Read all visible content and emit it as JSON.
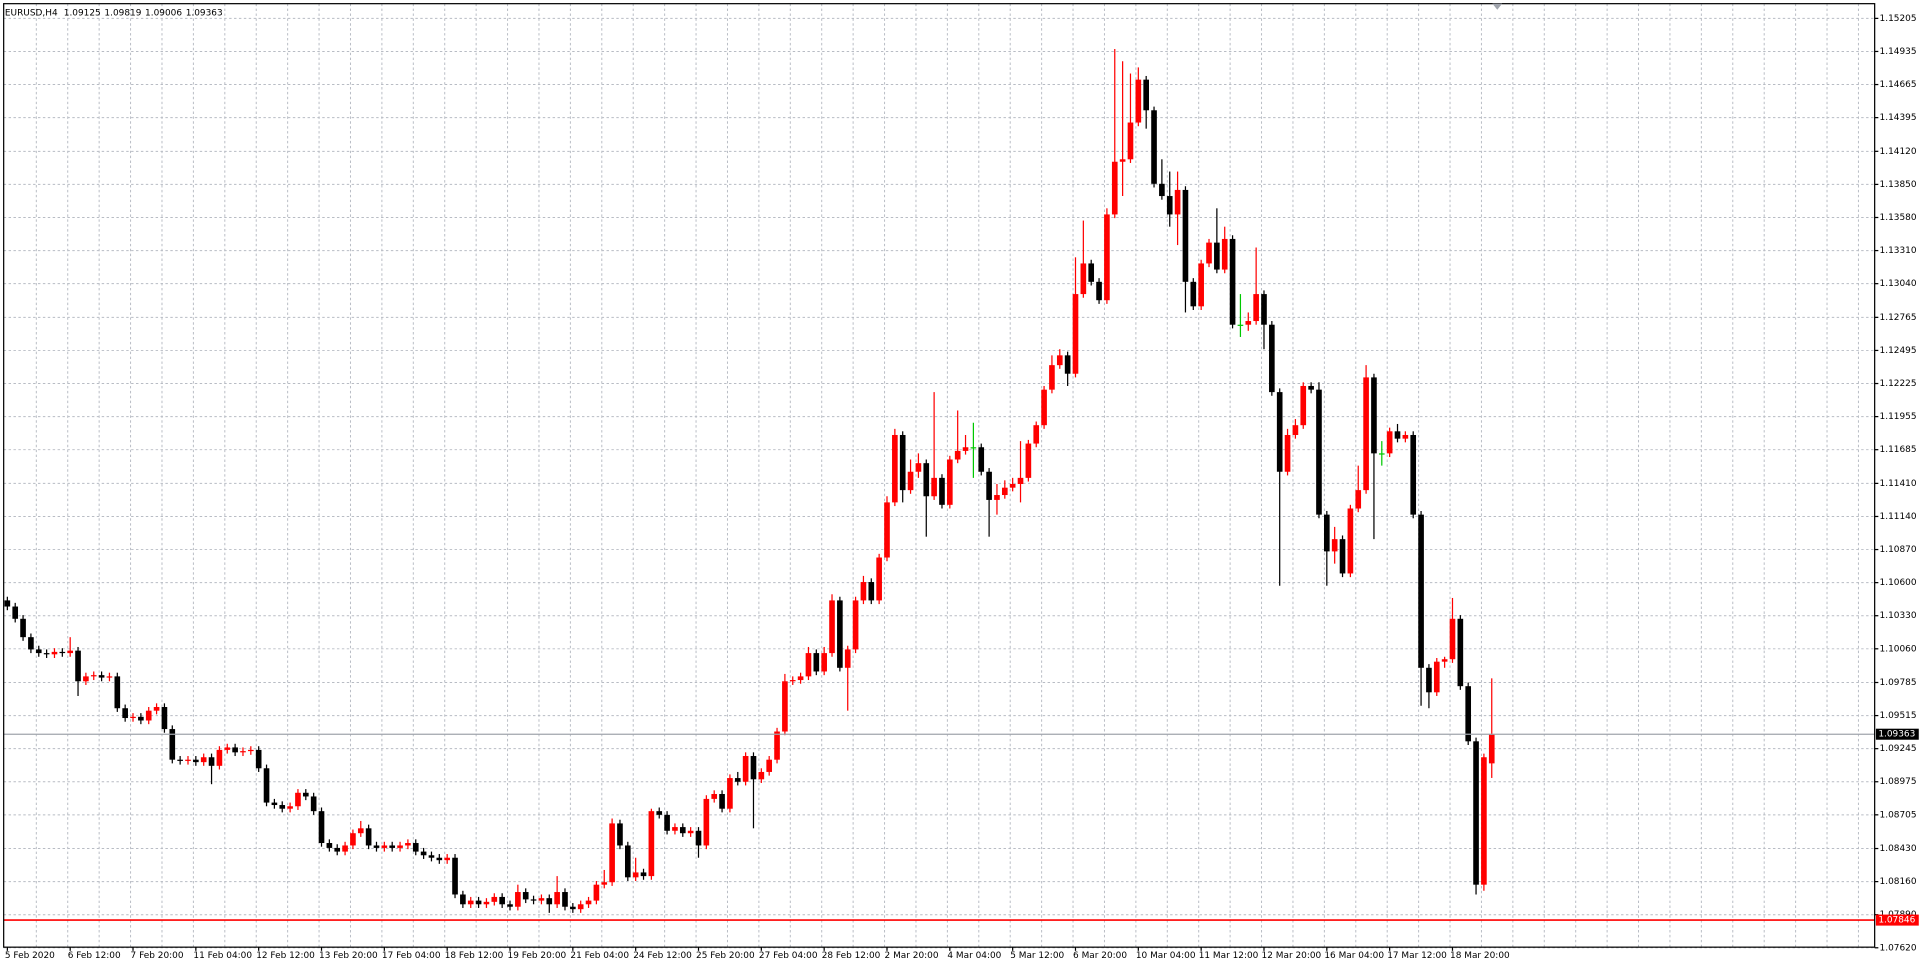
{
  "chart_data": {
    "type": "candlestick",
    "title": "EURUSD,H4",
    "bull_color": "#ff0000",
    "bear_color": "#000000",
    "doji_color": "#00c800",
    "grid": true,
    "ylim": [
      1.07625,
      1.15325
    ],
    "yticks": [
      1.15205,
      1.14935,
      1.14665,
      1.14395,
      {
        "value": 1.1412,
        "label": "1.14120"
      },
      {
        "value": 1.1385,
        "label": "1.13850"
      },
      {
        "value": 1.1358,
        "label": "1.13580"
      },
      {
        "value": 1.1331,
        "label": "1.13310"
      },
      {
        "value": 1.1304,
        "label": "1.13040"
      },
      1.12765,
      1.12495,
      1.12225,
      1.11955,
      1.11685,
      {
        "value": 1.1141,
        "label": "1.11410"
      },
      {
        "value": 1.1114,
        "label": "1.11140"
      },
      {
        "value": 1.1087,
        "label": "1.10870"
      },
      {
        "value": 1.106,
        "label": "1.10600"
      },
      {
        "value": 1.1033,
        "label": "1.10330"
      },
      {
        "value": 1.1006,
        "label": "1.10060"
      },
      1.09785,
      1.09515,
      1.09245,
      1.08975,
      1.08705,
      {
        "value": 1.0843,
        "label": "1.08430"
      },
      {
        "value": 1.0816,
        "label": "1.08160"
      },
      {
        "value": 1.0789,
        "label": "1.07890"
      },
      {
        "value": 1.0762,
        "label": "1.07620"
      }
    ],
    "hline": {
      "value": 1.07846,
      "color": "#ff0000"
    },
    "categories": [
      "5 Feb 2020",
      null,
      null,
      null,
      null,
      null,
      null,
      null,
      "6 Feb 12:00",
      null,
      null,
      null,
      null,
      null,
      null,
      null,
      "7 Feb 20:00",
      null,
      null,
      null,
      null,
      null,
      null,
      null,
      "11 Feb 04:00",
      null,
      null,
      null,
      null,
      null,
      null,
      null,
      "12 Feb 12:00",
      null,
      null,
      null,
      null,
      null,
      null,
      null,
      "13 Feb 20:00",
      null,
      null,
      null,
      null,
      null,
      null,
      null,
      "17 Feb 04:00",
      null,
      null,
      null,
      null,
      null,
      null,
      null,
      "18 Feb 12:00",
      null,
      null,
      null,
      null,
      null,
      null,
      null,
      "19 Feb 20:00",
      null,
      null,
      null,
      null,
      null,
      null,
      null,
      "21 Feb 04:00",
      null,
      null,
      null,
      null,
      null,
      null,
      null,
      "24 Feb 12:00",
      null,
      null,
      null,
      null,
      null,
      null,
      null,
      "25 Feb 20:00",
      null,
      null,
      null,
      null,
      null,
      null,
      null,
      "27 Feb 04:00",
      null,
      null,
      null,
      null,
      null,
      null,
      null,
      "28 Feb 12:00",
      null,
      null,
      null,
      null,
      null,
      null,
      null,
      "2 Mar 20:00",
      null,
      null,
      null,
      null,
      null,
      null,
      null,
      "4 Mar 04:00",
      null,
      null,
      null,
      null,
      null,
      null,
      null,
      "5 Mar 12:00",
      null,
      null,
      null,
      null,
      null,
      null,
      null,
      "6 Mar 20:00",
      null,
      null,
      null,
      null,
      null,
      null,
      null,
      "10 Mar 04:00",
      null,
      null,
      null,
      null,
      null,
      null,
      null,
      "11 Mar 12:00",
      null,
      null,
      null,
      null,
      null,
      null,
      null,
      "12 Mar 20:00",
      null,
      null,
      null,
      null,
      null,
      null,
      null,
      "16 Mar 04:00",
      null,
      null,
      null,
      null,
      null,
      null,
      null,
      "17 Mar 12:00",
      null,
      null,
      null,
      null,
      null,
      null,
      null,
      "18 Mar 20:00",
      null,
      null,
      null,
      null,
      null
    ],
    "open": [
      1.10455,
      1.10405,
      1.10305,
      1.10155,
      1.10055,
      1.10025,
      1.10015,
      1.10035,
      1.10025,
      1.10045,
      1.09795,
      1.09835,
      1.09845,
      1.09825,
      1.09835,
      1.09575,
      1.09495,
      1.09505,
      1.09475,
      1.09555,
      1.09585,
      1.09405,
      1.09155,
      1.09145,
      1.09155,
      1.09135,
      1.09175,
      1.09105,
      1.09235,
      1.09255,
      1.09215,
      1.09225,
      1.09235,
      1.09085,
      1.08805,
      1.08785,
      1.08755,
      1.08775,
      1.08885,
      1.08855,
      1.08735,
      1.08475,
      1.08435,
      1.08405,
      1.08455,
      1.08555,
      1.08595,
      1.08455,
      1.08435,
      1.08455,
      1.08435,
      1.08455,
      1.08475,
      1.08405,
      1.08375,
      1.08355,
      1.08335,
      1.08355,
      1.08055,
      1.07975,
      1.08005,
      1.07975,
      1.07995,
      1.08035,
      1.07975,
      1.07955,
      1.08075,
      1.08015,
      1.08005,
      1.08025,
      1.07975,
      1.08075,
      1.07955,
      1.07935,
      1.07975,
      1.08005,
      1.08135,
      1.08155,
      1.08635,
      1.08455,
      1.08195,
      1.08235,
      1.08205,
      1.08735,
      1.08705,
      1.08575,
      1.08605,
      1.08555,
      1.08575,
      1.08455,
      1.08835,
      1.08875,
      1.08755,
      1.09005,
      1.08975,
      1.09185,
      1.08995,
      1.09055,
      1.09155,
      1.09385,
      1.09795,
      1.09805,
      1.09835,
      1.10025,
      1.09875,
      1.10025,
      1.10455,
      1.09905,
      1.10055,
      1.10455,
      1.10605,
      1.10455,
      1.10805,
      1.11255,
      1.11805,
      1.11355,
      1.11505,
      1.11575,
      1.11305,
      1.11455,
      1.11235,
      1.11605,
      1.11675,
      1.11705,
      1.11705,
      1.11505,
      1.11275,
      1.11315,
      1.11375,
      1.11405,
      1.11455,
      1.11735,
      1.11885,
      1.12175,
      1.12375,
      1.12455,
      1.12305,
      1.12955,
      1.13205,
      1.13055,
      1.12905,
      1.13605,
      1.14035,
      1.14055,
      1.14355,
      1.14705,
      1.14455,
      1.13855,
      1.13755,
      1.13605,
      1.13805,
      1.13055,
      1.12855,
      1.13205,
      1.13375,
      1.13155,
      1.13405,
      1.12705,
      1.12705,
      1.12735,
      1.12955,
      1.12705,
      1.12155,
      1.11505,
      1.11805,
      1.11885,
      1.12205,
      1.12175,
      1.11155,
      1.10855,
      1.10955,
      1.10675,
      1.11205,
      1.11355,
      1.12275,
      1.11655,
      1.11655,
      1.11835,
      1.11775,
      1.11805,
      1.11155,
      1.09905,
      1.09705,
      1.09955,
      1.09975,
      1.10305,
      1.09755,
      1.09305,
      1.08135,
      1.09125
    ],
    "high": [
      1.10485,
      1.10435,
      1.10335,
      1.10185,
      1.10085,
      1.10055,
      1.10065,
      1.10065,
      1.10155,
      1.10075,
      1.09865,
      1.09875,
      1.09875,
      1.09865,
      1.09865,
      1.09605,
      1.09535,
      1.09535,
      1.09585,
      1.09615,
      1.09615,
      1.09435,
      1.09185,
      1.09185,
      1.09185,
      1.09205,
      1.09205,
      1.09265,
      1.09285,
      1.09285,
      1.09255,
      1.09265,
      1.09265,
      1.09115,
      1.08835,
      1.08815,
      1.08805,
      1.08915,
      1.08915,
      1.08885,
      1.08765,
      1.08505,
      1.08465,
      1.08485,
      1.08585,
      1.08655,
      1.08625,
      1.08485,
      1.08485,
      1.08485,
      1.08485,
      1.08505,
      1.08505,
      1.08435,
      1.08405,
      1.08385,
      1.08385,
      1.08385,
      1.08085,
      1.08035,
      1.08035,
      1.08025,
      1.08065,
      1.08065,
      1.08005,
      1.08135,
      1.08105,
      1.08045,
      1.08055,
      1.08055,
      1.08205,
      1.08105,
      1.07985,
      1.08005,
      1.08035,
      1.08165,
      1.08255,
      1.08675,
      1.08665,
      1.08485,
      1.08355,
      1.08265,
      1.08755,
      1.08765,
      1.08735,
      1.08635,
      1.08635,
      1.08605,
      1.08605,
      1.08865,
      1.08905,
      1.08905,
      1.09035,
      1.09055,
      1.09215,
      1.09215,
      1.09085,
      1.09185,
      1.09415,
      1.09855,
      1.09835,
      1.09865,
      1.10075,
      1.10055,
      1.10075,
      1.10505,
      1.10485,
      1.10085,
      1.10485,
      1.10655,
      1.10635,
      1.10835,
      1.11305,
      1.11855,
      1.11835,
      1.11605,
      1.11655,
      1.11605,
      1.12155,
      1.11485,
      1.11635,
      1.12005,
      1.11805,
      1.11905,
      1.11735,
      1.11535,
      1.11405,
      1.11435,
      1.11455,
      1.11755,
      1.11765,
      1.11915,
      1.12205,
      1.12455,
      1.12505,
      1.12485,
      1.13255,
      1.13555,
      1.13235,
      1.13085,
      1.13655,
      1.14955,
      1.14855,
      1.14755,
      1.14805,
      1.14735,
      1.14485,
      1.14055,
      1.13955,
      1.13955,
      1.13835,
      1.13085,
      1.13235,
      1.13405,
      1.13655,
      1.13505,
      1.13435,
      1.12955,
      1.12805,
      1.13335,
      1.12985,
      1.12735,
      1.12185,
      1.11855,
      1.11935,
      1.12235,
      1.12235,
      1.12235,
      1.11185,
      1.11055,
      1.10985,
      1.11235,
      1.11555,
      1.12375,
      1.12305,
      1.11755,
      1.11865,
      1.11895,
      1.11835,
      1.11835,
      1.11185,
      1.09935,
      1.09985,
      1.09995,
      1.10475,
      1.10335,
      1.09785,
      1.09335,
      1.09205,
      1.09819
    ],
    "low": [
      1.10375,
      1.10275,
      1.10125,
      1.10025,
      1.09995,
      1.09985,
      1.09985,
      1.09995,
      1.09995,
      1.09675,
      1.09765,
      1.09805,
      1.09795,
      1.09795,
      1.09545,
      1.09465,
      1.09465,
      1.09445,
      1.09445,
      1.09525,
      1.09375,
      1.09125,
      1.09115,
      1.09115,
      1.09105,
      1.09105,
      1.08955,
      1.09075,
      1.09205,
      1.09185,
      1.09185,
      1.09195,
      1.09055,
      1.08775,
      1.08755,
      1.08725,
      1.08725,
      1.08745,
      1.08825,
      1.08705,
      1.08445,
      1.08405,
      1.08375,
      1.08375,
      1.08425,
      1.08525,
      1.08425,
      1.08405,
      1.08405,
      1.08405,
      1.08405,
      1.08425,
      1.08375,
      1.08345,
      1.08325,
      1.08305,
      1.08305,
      1.08025,
      1.07945,
      1.07945,
      1.07945,
      1.07945,
      1.07965,
      1.07945,
      1.07925,
      1.07925,
      1.07985,
      1.07975,
      1.07975,
      1.07905,
      1.07945,
      1.07925,
      1.07905,
      1.07905,
      1.07945,
      1.07975,
      1.08105,
      1.08125,
      1.08425,
      1.08165,
      1.08165,
      1.08175,
      1.08175,
      1.08675,
      1.08545,
      1.08545,
      1.08525,
      1.08525,
      1.08355,
      1.08425,
      1.08805,
      1.08725,
      1.08725,
      1.08945,
      1.08945,
      1.08595,
      1.08965,
      1.09025,
      1.09125,
      1.09355,
      1.09765,
      1.09775,
      1.09805,
      1.09845,
      1.09845,
      1.09995,
      1.09875,
      1.09555,
      1.10025,
      1.10425,
      1.10425,
      1.10425,
      1.10775,
      1.11225,
      1.11255,
      1.11325,
      1.11455,
      1.10975,
      1.11275,
      1.11205,
      1.11205,
      1.11575,
      1.11645,
      1.11455,
      1.11475,
      1.10975,
      1.11155,
      1.11285,
      1.11345,
      1.11255,
      1.11425,
      1.11705,
      1.11855,
      1.12145,
      1.12345,
      1.12205,
      1.12275,
      1.12925,
      1.13025,
      1.12875,
      1.12875,
      1.13575,
      1.13755,
      1.14025,
      1.14325,
      1.14305,
      1.13825,
      1.13725,
      1.13505,
      1.13355,
      1.12805,
      1.12825,
      1.12825,
      1.13175,
      1.13125,
      1.13125,
      1.12675,
      1.12605,
      1.12655,
      1.12705,
      1.12505,
      1.12125,
      1.10575,
      1.11475,
      1.11775,
      1.11855,
      1.12145,
      1.11125,
      1.10575,
      1.10755,
      1.10645,
      1.10645,
      1.11175,
      1.11325,
      1.10955,
      1.11555,
      1.11625,
      1.11745,
      1.11745,
      1.11125,
      1.09595,
      1.09575,
      1.09675,
      1.09905,
      1.09945,
      1.09725,
      1.09275,
      1.08055,
      1.08085,
      1.09006
    ],
    "close": [
      1.10405,
      1.10305,
      1.10155,
      1.10055,
      1.10025,
      1.10015,
      1.10035,
      1.10025,
      1.10045,
      1.09795,
      1.09835,
      1.09845,
      1.09825,
      1.09835,
      1.09575,
      1.09495,
      1.09505,
      1.09475,
      1.09555,
      1.09585,
      1.09405,
      1.09155,
      1.09145,
      1.09155,
      1.09135,
      1.09175,
      1.09105,
      1.09235,
      1.09255,
      1.09215,
      1.09225,
      1.09235,
      1.09085,
      1.08805,
      1.08785,
      1.08755,
      1.08775,
      1.08885,
      1.08855,
      1.08735,
      1.08475,
      1.08435,
      1.08405,
      1.08455,
      1.08555,
      1.08595,
      1.08455,
      1.08435,
      1.08455,
      1.08435,
      1.08455,
      1.08475,
      1.08405,
      1.08375,
      1.08355,
      1.08335,
      1.08355,
      1.08055,
      1.07975,
      1.08005,
      1.07975,
      1.07995,
      1.08035,
      1.07975,
      1.07955,
      1.08075,
      1.08015,
      1.08005,
      1.08025,
      1.07975,
      1.08075,
      1.07955,
      1.07935,
      1.07975,
      1.08005,
      1.08135,
      1.08155,
      1.08635,
      1.08455,
      1.08195,
      1.08235,
      1.08205,
      1.08735,
      1.08705,
      1.08575,
      1.08605,
      1.08555,
      1.08575,
      1.08455,
      1.08835,
      1.08875,
      1.08755,
      1.09005,
      1.08975,
      1.09185,
      1.08995,
      1.09055,
      1.09155,
      1.09385,
      1.09795,
      1.09805,
      1.09835,
      1.10025,
      1.09875,
      1.10025,
      1.10455,
      1.09905,
      1.10055,
      1.10455,
      1.10605,
      1.10455,
      1.10805,
      1.11255,
      1.11805,
      1.11355,
      1.11505,
      1.11575,
      1.11305,
      1.11455,
      1.11235,
      1.11605,
      1.11675,
      1.11705,
      1.11705,
      1.11505,
      1.11275,
      1.11315,
      1.11375,
      1.11405,
      1.11455,
      1.11735,
      1.11885,
      1.12175,
      1.12375,
      1.12455,
      1.12305,
      1.12955,
      1.13205,
      1.13055,
      1.12905,
      1.13605,
      1.14035,
      1.14055,
      1.14355,
      1.14705,
      1.14455,
      1.13855,
      1.13755,
      1.13605,
      1.13805,
      1.13055,
      1.12855,
      1.13205,
      1.13375,
      1.13155,
      1.13405,
      1.12705,
      1.12705,
      1.12735,
      1.12955,
      1.12705,
      1.12155,
      1.11505,
      1.11805,
      1.11885,
      1.12205,
      1.12175,
      1.11155,
      1.10855,
      1.10955,
      1.10675,
      1.11205,
      1.11355,
      1.12275,
      1.11655,
      1.11655,
      1.11835,
      1.11775,
      1.11805,
      1.11155,
      1.09905,
      1.09705,
      1.09955,
      1.09975,
      1.10305,
      1.09755,
      1.09305,
      1.08135,
      1.09175,
      1.09363
    ]
  }
}
